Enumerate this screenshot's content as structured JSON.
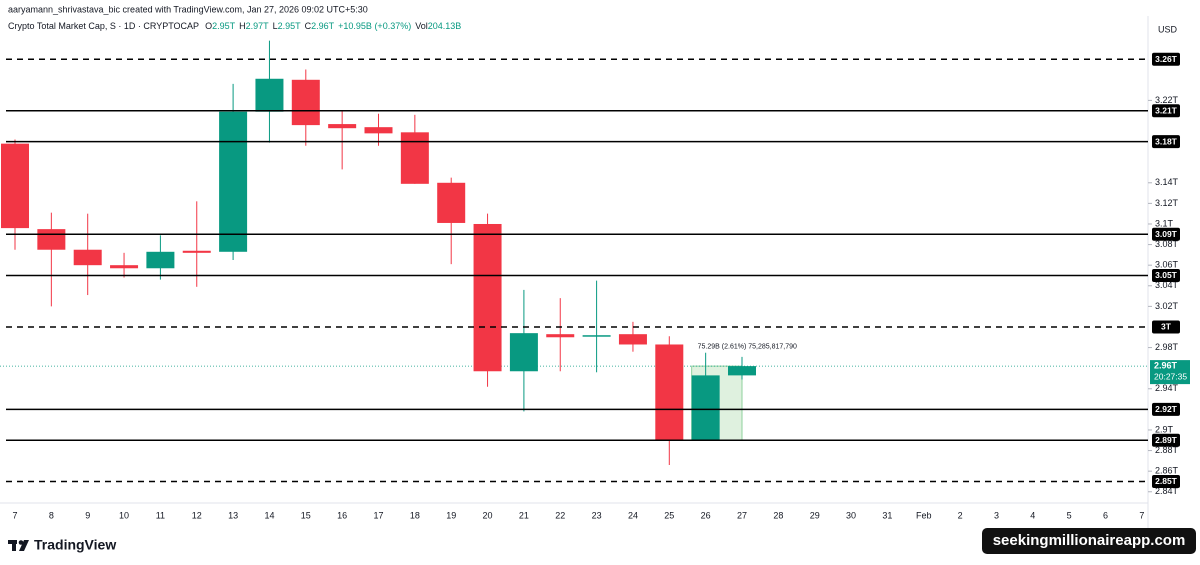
{
  "header": {
    "credit": "aaryamann_shrivastava_bic created with TradingView.com, Jan 27, 2026 09:02 UTC+5:30",
    "symbol": "Crypto Total Market Cap, S · 1D · CRYPTOCAP",
    "ohlc": [
      {
        "label": "O",
        "value": "2.95T"
      },
      {
        "label": "H",
        "value": "2.97T"
      },
      {
        "label": "L",
        "value": "2.95T"
      },
      {
        "label": "C",
        "value": "2.96T"
      }
    ],
    "change": "+10.95B (+0.37%)",
    "volume_label": "Vol",
    "volume": "204.13B",
    "currency": "USD"
  },
  "footer": {
    "brand": "TradingView",
    "watermark": "seekingmillionaireapp.com"
  },
  "chart_data": {
    "type": "candlestick",
    "categories": [
      "7",
      "8",
      "9",
      "10",
      "11",
      "12",
      "13",
      "14",
      "15",
      "16",
      "17",
      "18",
      "19",
      "20",
      "21",
      "22",
      "23",
      "24",
      "25",
      "26",
      "27",
      "28",
      "29",
      "30",
      "31",
      "Feb",
      "2",
      "3",
      "4",
      "5",
      "6",
      "7"
    ],
    "open": [
      3.178,
      3.095,
      3.075,
      3.06,
      3.057,
      3.074,
      3.073,
      3.209,
      3.24,
      3.197,
      3.194,
      3.189,
      3.14,
      3.1,
      2.957,
      2.993,
      2.991,
      2.993,
      2.983,
      2.89,
      2.953,
      null,
      null,
      null,
      null,
      null,
      null,
      null,
      null,
      null,
      null,
      null
    ],
    "high": [
      3.182,
      3.111,
      3.11,
      3.072,
      3.089,
      3.122,
      3.236,
      3.278,
      3.25,
      3.21,
      3.207,
      3.206,
      3.145,
      3.11,
      3.036,
      3.028,
      3.045,
      3.005,
      2.991,
      2.975,
      2.971,
      null,
      null,
      null,
      null,
      null,
      null,
      null,
      null,
      null,
      null,
      null
    ],
    "low": [
      3.075,
      3.02,
      3.031,
      3.048,
      3.046,
      3.039,
      3.065,
      3.179,
      3.176,
      3.153,
      3.176,
      3.139,
      3.061,
      2.942,
      2.918,
      2.957,
      2.956,
      2.976,
      2.866,
      2.89,
      2.949,
      null,
      null,
      null,
      null,
      null,
      null,
      null,
      null,
      null,
      null,
      null
    ],
    "close": [
      3.096,
      3.075,
      3.06,
      3.057,
      3.073,
      3.072,
      3.209,
      3.241,
      3.196,
      3.193,
      3.188,
      3.139,
      3.101,
      2.957,
      2.994,
      2.99,
      2.992,
      2.983,
      2.89,
      2.953,
      2.962,
      null,
      null,
      null,
      null,
      null,
      null,
      null,
      null,
      null,
      null,
      null
    ],
    "up_color": "#089981",
    "down_color": "#f23645",
    "ylim": [
      2.832,
      3.3
    ],
    "yticks": [
      {
        "value": 3.22,
        "label": "3.22T"
      },
      {
        "value": 3.14,
        "label": "3.14T"
      },
      {
        "value": 3.12,
        "label": "3.12T"
      },
      {
        "value": 3.1,
        "label": "3.1T"
      },
      {
        "value": 3.08,
        "label": "3.08T"
      },
      {
        "value": 3.06,
        "label": "3.06T"
      },
      {
        "value": 3.04,
        "label": "3.04T"
      },
      {
        "value": 3.02,
        "label": "3.02T"
      },
      {
        "value": 2.98,
        "label": "2.98T"
      },
      {
        "value": 2.94,
        "label": "2.94T"
      },
      {
        "value": 2.9,
        "label": "2.9T"
      },
      {
        "value": 2.88,
        "label": "2.88T"
      },
      {
        "value": 2.86,
        "label": "2.86T"
      },
      {
        "value": 2.84,
        "label": "2.84T"
      }
    ],
    "levels": [
      {
        "value": 3.26,
        "label": "3.26T",
        "style": "dashed"
      },
      {
        "value": 3.21,
        "label": "3.21T",
        "style": "solid"
      },
      {
        "value": 3.18,
        "label": "3.18T",
        "style": "solid"
      },
      {
        "value": 3.09,
        "label": "3.09T",
        "style": "solid"
      },
      {
        "value": 3.05,
        "label": "3.05T",
        "style": "solid"
      },
      {
        "value": 3,
        "label": "3T",
        "style": "dashed"
      },
      {
        "value": 2.92,
        "label": "2.92T",
        "style": "solid"
      },
      {
        "value": 2.89,
        "label": "2.89T",
        "style": "solid"
      },
      {
        "value": 2.85,
        "label": "2.85T",
        "style": "dashed"
      }
    ],
    "last_price": {
      "label": "2.96T",
      "countdown": "20:27:35"
    },
    "measure": {
      "label": "75.29B (2.61%) 75,285,817,790"
    }
  }
}
